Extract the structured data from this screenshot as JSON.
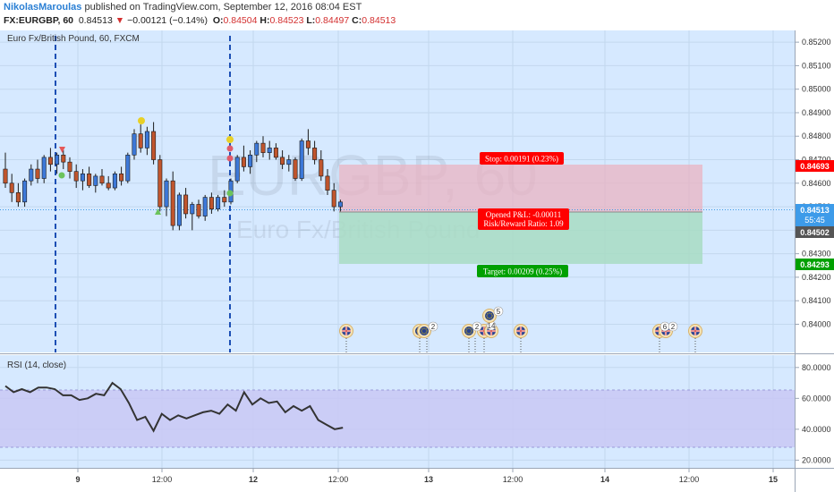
{
  "header": {
    "author": "NikolasMaroulas",
    "published": " published on TradingView.com, September 12, 2016 08:04 EST",
    "symbol": "FX:EURGBP, 60",
    "last": "0.84513",
    "change": "−0.00121 (−0.14%)",
    "open_label": "O:",
    "open": "0.84504",
    "high_label": "H:",
    "high": "0.84523",
    "low_label": "L:",
    "low": "0.84497",
    "close_label": "C:",
    "close": "0.84513"
  },
  "chart_title": "Euro Fx/British Pound, 60, FXCM",
  "watermark": {
    "symbol": "EURGBP, 60",
    "name": "Euro Fx/British Pound"
  },
  "position": {
    "stop": "Stop: 0.00191 (0.23%)",
    "pnl": "Opened P&L: -0.00011",
    "rr": "Risk/Reward Ratio: 1.09",
    "target": "Target: 0.00209 (0.25%)"
  },
  "price_tags": {
    "stop": "0.84693",
    "current": "0.84513",
    "countdown": "55:45",
    "entry": "0.84502",
    "target": "0.84293"
  },
  "colors": {
    "background": "#d6e9ff",
    "bull": "#3c78d8",
    "bear": "#c0552d",
    "stop_zone": "#e9b3c2",
    "target_zone": "#a8dcc3",
    "stop_tag": "#ff0000",
    "target_tag": "#00a000",
    "current_tag": "#3d9be9",
    "rsi_band": "#c9c8f5",
    "rsi_line": "#333333",
    "vline": "#1c4fb5"
  },
  "event_icons": [
    "uk-flag-icon",
    "eu-flag-icon"
  ],
  "event_counts": [
    "2",
    "2",
    "14",
    "5",
    "6",
    "2"
  ],
  "chart_data": [
    {
      "type": "candlestick",
      "title": "Euro Fx/British Pound, 60, FXCM",
      "ylim": [
        0.8388,
        0.8525
      ],
      "y_ticks": [
        "0.85200",
        "0.85100",
        "0.85000",
        "0.84900",
        "0.84800",
        "0.84700",
        "0.84600",
        "0.84500",
        "0.84400",
        "0.84300",
        "0.84200",
        "0.84100",
        "0.84000"
      ],
      "x_ticks": [
        "9",
        "12:00",
        "12",
        "12:00",
        "13",
        "12:00",
        "14",
        "12:00",
        "15"
      ],
      "candles": [
        [
          0.8466,
          0.8473,
          0.8458,
          0.846
        ],
        [
          0.846,
          0.8464,
          0.8452,
          0.8456
        ],
        [
          0.8456,
          0.846,
          0.845,
          0.8452
        ],
        [
          0.8452,
          0.8462,
          0.845,
          0.8461
        ],
        [
          0.8461,
          0.8468,
          0.8459,
          0.8466
        ],
        [
          0.8466,
          0.847,
          0.846,
          0.8462
        ],
        [
          0.8462,
          0.8472,
          0.846,
          0.8471
        ],
        [
          0.8471,
          0.8475,
          0.8465,
          0.8468
        ],
        [
          0.8468,
          0.8473,
          0.8464,
          0.8472
        ],
        [
          0.8472,
          0.8474,
          0.8466,
          0.8469
        ],
        [
          0.8469,
          0.8471,
          0.8462,
          0.8465
        ],
        [
          0.8465,
          0.8468,
          0.8458,
          0.8461
        ],
        [
          0.8461,
          0.8466,
          0.8457,
          0.8464
        ],
        [
          0.8464,
          0.8467,
          0.8458,
          0.8459
        ],
        [
          0.8459,
          0.8464,
          0.8456,
          0.8463
        ],
        [
          0.8463,
          0.8466,
          0.8459,
          0.846
        ],
        [
          0.846,
          0.8463,
          0.8457,
          0.8458
        ],
        [
          0.8458,
          0.8465,
          0.8457,
          0.8464
        ],
        [
          0.8464,
          0.8467,
          0.8459,
          0.8461
        ],
        [
          0.8461,
          0.8473,
          0.846,
          0.8472
        ],
        [
          0.8472,
          0.8483,
          0.847,
          0.8481
        ],
        [
          0.8481,
          0.8485,
          0.8473,
          0.8475
        ],
        [
          0.8475,
          0.8484,
          0.8472,
          0.8482
        ],
        [
          0.8482,
          0.8486,
          0.8468,
          0.847
        ],
        [
          0.847,
          0.8472,
          0.8448,
          0.845
        ],
        [
          0.845,
          0.8462,
          0.8446,
          0.8461
        ],
        [
          0.8461,
          0.8465,
          0.844,
          0.8442
        ],
        [
          0.8442,
          0.8456,
          0.844,
          0.8455
        ],
        [
          0.8455,
          0.8458,
          0.8445,
          0.8447
        ],
        [
          0.8447,
          0.8452,
          0.844,
          0.8451
        ],
        [
          0.8451,
          0.8453,
          0.8445,
          0.8446
        ],
        [
          0.8446,
          0.8455,
          0.8444,
          0.8454
        ],
        [
          0.8454,
          0.8456,
          0.8447,
          0.8449
        ],
        [
          0.8449,
          0.8455,
          0.8448,
          0.8454
        ],
        [
          0.8454,
          0.8457,
          0.845,
          0.8452
        ],
        [
          0.8452,
          0.8462,
          0.8451,
          0.8461
        ],
        [
          0.8461,
          0.8472,
          0.846,
          0.8471
        ],
        [
          0.8471,
          0.8476,
          0.8465,
          0.8467
        ],
        [
          0.8467,
          0.8474,
          0.8464,
          0.8472
        ],
        [
          0.8472,
          0.8478,
          0.8469,
          0.8477
        ],
        [
          0.8477,
          0.848,
          0.8471,
          0.8473
        ],
        [
          0.8473,
          0.8478,
          0.847,
          0.8475
        ],
        [
          0.8475,
          0.8477,
          0.847,
          0.8471
        ],
        [
          0.8471,
          0.8474,
          0.8466,
          0.8468
        ],
        [
          0.8468,
          0.8472,
          0.8465,
          0.847
        ],
        [
          0.847,
          0.8471,
          0.8461,
          0.8462
        ],
        [
          0.8462,
          0.8479,
          0.8461,
          0.8478
        ],
        [
          0.8478,
          0.8483,
          0.8472,
          0.8475
        ],
        [
          0.8475,
          0.8478,
          0.8468,
          0.847
        ],
        [
          0.847,
          0.8474,
          0.8461,
          0.8463
        ],
        [
          0.8463,
          0.8466,
          0.8455,
          0.8457
        ],
        [
          0.8457,
          0.846,
          0.8448,
          0.845
        ],
        [
          0.845,
          0.8453,
          0.8448,
          0.8452
        ]
      ]
    },
    {
      "type": "line",
      "title": "RSI (14, close)",
      "ylim": [
        15,
        88
      ],
      "band": [
        30,
        70
      ],
      "y_ticks": [
        "80.0000",
        "60.0000",
        "40.0000",
        "20.0000"
      ],
      "values": [
        68,
        64,
        66,
        64,
        67,
        67,
        66,
        62,
        62,
        59,
        60,
        63,
        62,
        70,
        66,
        57,
        46,
        48,
        39,
        50,
        46,
        49,
        47,
        49,
        51,
        52,
        50,
        56,
        52,
        64,
        56,
        60,
        57,
        58,
        51,
        55,
        52,
        55,
        46,
        43,
        40,
        41
      ]
    }
  ]
}
